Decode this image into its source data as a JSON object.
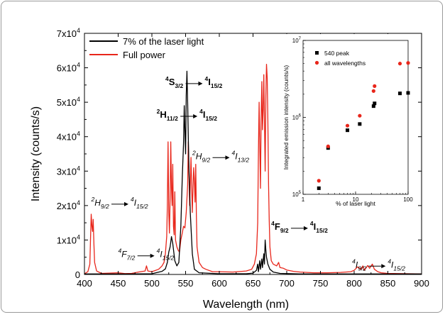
{
  "chart_data": [
    {
      "type": "line",
      "xlabel": "Wavelength (nm)",
      "ylabel": "Intensity (counts/s)",
      "xlim": [
        400,
        900
      ],
      "ylim": [
        0,
        70000
      ],
      "x_ticks": [
        "400",
        "450",
        "500",
        "550",
        "600",
        "650",
        "700",
        "750",
        "800",
        "850",
        "900"
      ],
      "y_ticks": [
        {
          "value": 0,
          "mantissa": "0",
          "exp": ""
        },
        {
          "value": 10000,
          "mantissa": "1x10",
          "exp": "4"
        },
        {
          "value": 20000,
          "mantissa": "2x10",
          "exp": "4"
        },
        {
          "value": 30000,
          "mantissa": "3x10",
          "exp": "4"
        },
        {
          "value": 40000,
          "mantissa": "4x10",
          "exp": "4"
        },
        {
          "value": 50000,
          "mantissa": "5x10",
          "exp": "4"
        },
        {
          "value": 60000,
          "mantissa": "6x10",
          "exp": "4"
        },
        {
          "value": 70000,
          "mantissa": "7x10",
          "exp": "4"
        }
      ],
      "legend_position": "top-left",
      "series": [
        {
          "name": "7% of the laser light",
          "color": "#000000",
          "points": [
            [
              400,
              150
            ],
            [
              470,
              150
            ],
            [
              500,
              200
            ],
            [
              515,
              900
            ],
            [
              520,
              1600
            ],
            [
              523,
              3500
            ],
            [
              525,
              6500
            ],
            [
              527,
              8000
            ],
            [
              529,
              11000
            ],
            [
              531,
              9000
            ],
            [
              534,
              4000
            ],
            [
              537,
              2500
            ],
            [
              540,
              3500
            ],
            [
              543,
              14000
            ],
            [
              545,
              28000
            ],
            [
              547,
              38000
            ],
            [
              548,
              49000
            ],
            [
              549,
              42000
            ],
            [
              550,
              35000
            ],
            [
              551,
              52000
            ],
            [
              552,
              59000
            ],
            [
              553,
              50000
            ],
            [
              554,
              40000
            ],
            [
              555,
              30000
            ],
            [
              557,
              18000
            ],
            [
              560,
              6000
            ],
            [
              563,
              1500
            ],
            [
              570,
              500
            ],
            [
              600,
              200
            ],
            [
              640,
              200
            ],
            [
              650,
              400
            ],
            [
              655,
              1200
            ],
            [
              657,
              3000
            ],
            [
              658,
              800
            ],
            [
              660,
              4000
            ],
            [
              661,
              1500
            ],
            [
              663,
              4500
            ],
            [
              664,
              2000
            ],
            [
              666,
              6000
            ],
            [
              667,
              3000
            ],
            [
              668,
              10000
            ],
            [
              669,
              7000
            ],
            [
              670,
              5000
            ],
            [
              672,
              3000
            ],
            [
              675,
              1500
            ],
            [
              680,
              700
            ],
            [
              690,
              300
            ],
            [
              720,
              150
            ],
            [
              900,
              150
            ]
          ]
        },
        {
          "name": "Full power",
          "color": "#e8261b",
          "points": [
            [
              400,
              200
            ],
            [
              405,
              800
            ],
            [
              408,
              3000
            ],
            [
              409,
              10000
            ],
            [
              410,
              17500
            ],
            [
              411,
              14000
            ],
            [
              412,
              12500
            ],
            [
              413,
              16000
            ],
            [
              414,
              9000
            ],
            [
              415,
              3500
            ],
            [
              418,
              1000
            ],
            [
              425,
              300
            ],
            [
              450,
              500
            ],
            [
              460,
              250
            ],
            [
              470,
              300
            ],
            [
              480,
              700
            ],
            [
              490,
              1000
            ],
            [
              492,
              2500
            ],
            [
              494,
              1000
            ],
            [
              500,
              800
            ],
            [
              510,
              1500
            ],
            [
              515,
              2500
            ],
            [
              518,
              3500
            ],
            [
              520,
              6000
            ],
            [
              522,
              11000
            ],
            [
              523,
              20000
            ],
            [
              524,
              38500
            ],
            [
              525,
              18000
            ],
            [
              526,
              12000
            ],
            [
              527,
              22000
            ],
            [
              528,
              38500
            ],
            [
              529,
              25000
            ],
            [
              530,
              20000
            ],
            [
              531,
              32000
            ],
            [
              532,
              14000
            ],
            [
              533,
              11500
            ],
            [
              534,
              24000
            ],
            [
              535,
              10000
            ],
            [
              537,
              8000
            ],
            [
              539,
              7000
            ],
            [
              541,
              6500
            ],
            [
              543,
              10000
            ],
            [
              545,
              12000
            ],
            [
              547,
              14000
            ],
            [
              549,
              13500
            ],
            [
              551,
              18000
            ],
            [
              552,
              22000
            ],
            [
              553,
              26000
            ],
            [
              554,
              38500
            ],
            [
              555,
              29000
            ],
            [
              556,
              20000
            ],
            [
              557,
              26500
            ],
            [
              558,
              34000
            ],
            [
              559,
              25000
            ],
            [
              560,
              18000
            ],
            [
              561,
              25500
            ],
            [
              562,
              31000
            ],
            [
              563,
              27000
            ],
            [
              564,
              21000
            ],
            [
              565,
              32000
            ],
            [
              566,
              17000
            ],
            [
              567,
              8000
            ],
            [
              570,
              3500
            ],
            [
              575,
              2000
            ],
            [
              580,
              1500
            ],
            [
              590,
              800
            ],
            [
              600,
              800
            ],
            [
              620,
              700
            ],
            [
              640,
              1000
            ],
            [
              648,
              1500
            ],
            [
              652,
              3000
            ],
            [
              655,
              6000
            ],
            [
              657,
              15000
            ],
            [
              658,
              35000
            ],
            [
              659,
              50000
            ],
            [
              660,
              38000
            ],
            [
              661,
              25000
            ],
            [
              662,
              45000
            ],
            [
              663,
              56000
            ],
            [
              664,
              42000
            ],
            [
              665,
              48000
            ],
            [
              666,
              58000
            ],
            [
              667,
              45000
            ],
            [
              668,
              30000
            ],
            [
              669,
              52000
            ],
            [
              670,
              61000
            ],
            [
              671,
              57000
            ],
            [
              672,
              45000
            ],
            [
              673,
              26000
            ],
            [
              674,
              16000
            ],
            [
              675,
              8000
            ],
            [
              677,
              4000
            ],
            [
              680,
              3000
            ],
            [
              685,
              2500
            ],
            [
              688,
              3500
            ],
            [
              690,
              2000
            ],
            [
              695,
              1800
            ],
            [
              700,
              1300
            ],
            [
              710,
              900
            ],
            [
              720,
              700
            ],
            [
              740,
              500
            ],
            [
              760,
              500
            ],
            [
              780,
              600
            ],
            [
              795,
              800
            ],
            [
              800,
              1200
            ],
            [
              805,
              2200
            ],
            [
              810,
              1500
            ],
            [
              813,
              2500
            ],
            [
              815,
              1200
            ],
            [
              818,
              2000
            ],
            [
              820,
              2600
            ],
            [
              823,
              1800
            ],
            [
              825,
              2400
            ],
            [
              827,
              3000
            ],
            [
              830,
              1500
            ],
            [
              835,
              800
            ],
            [
              840,
              500
            ],
            [
              850,
              300
            ],
            [
              900,
              150
            ]
          ]
        }
      ],
      "annotations": [
        {
          "main": "S",
          "sub": "3/2",
          "sup": "4",
          "arrow_to": "I",
          "to_sub": "15/2",
          "to_sup": "4",
          "style": "bold",
          "x": 520,
          "y": 55000
        },
        {
          "main": "H",
          "sub": "11/2",
          "sup": "2",
          "arrow_to": "I",
          "to_sub": "15/2",
          "to_sup": "4",
          "style": "bold",
          "x": 507,
          "y": 45500
        },
        {
          "main": "H",
          "sub": "9/2",
          "sup": "2",
          "arrow_to": "I",
          "to_sub": "13/2",
          "to_sup": "4",
          "style": "italic",
          "x": 560,
          "y": 33500
        },
        {
          "main": "H",
          "sub": "9/2",
          "sup": "2",
          "arrow_to": "I",
          "to_sub": "15/2",
          "to_sup": "4",
          "style": "italic",
          "x": 410,
          "y": 20000
        },
        {
          "main": "F",
          "sub": "7/2",
          "sup": "4",
          "arrow_to": "I",
          "to_sub": "15/2",
          "to_sup": "4",
          "style": "italic",
          "x": 450,
          "y": 5000
        },
        {
          "main": "F",
          "sub": "9/2",
          "sup": "4",
          "arrow_to": "I",
          "to_sub": "15/2",
          "to_sup": "4",
          "style": "bold",
          "x": 677,
          "y": 13000
        },
        {
          "main": "I",
          "sub": "9/2",
          "sup": "4",
          "arrow_to": "I",
          "to_sub": "15/2",
          "to_sup": "4",
          "style": "italic",
          "x": 797,
          "y": 2000
        }
      ]
    },
    {
      "type": "scatter",
      "xlabel": "% of laser light",
      "ylabel": "Integrated emission intensity (counts/s)",
      "xscale": "log",
      "yscale": "log",
      "xlim": [
        1,
        100
      ],
      "ylim": [
        100000,
        10000000
      ],
      "x_ticks": [
        {
          "value": 1,
          "label": "1"
        },
        {
          "value": 10,
          "label": "10"
        },
        {
          "value": 100,
          "label": "100"
        }
      ],
      "y_ticks": [
        {
          "value": 100000,
          "mantissa": "10",
          "exp": "5"
        },
        {
          "value": 1000000,
          "mantissa": "10",
          "exp": "6"
        },
        {
          "value": 10000000,
          "mantissa": "10",
          "exp": "7"
        }
      ],
      "legend_position": "top-left",
      "series": [
        {
          "name": "540 peak",
          "color": "#000000",
          "marker": "square",
          "points": [
            [
              2,
              120000
            ],
            [
              3,
              400000
            ],
            [
              7,
              680000
            ],
            [
              12,
              820000
            ],
            [
              22,
              1400000
            ],
            [
              23,
              1520000
            ],
            [
              70,
              2050000
            ],
            [
              100,
              2080000
            ]
          ]
        },
        {
          "name": "all wavelengths",
          "color": "#e8261b",
          "marker": "circle",
          "points": [
            [
              2,
              150000
            ],
            [
              3,
              420000
            ],
            [
              7,
              780000
            ],
            [
              12,
              1050000
            ],
            [
              22,
              2200000
            ],
            [
              23,
              2550000
            ],
            [
              70,
              5000000
            ],
            [
              100,
              5100000
            ]
          ]
        }
      ]
    }
  ]
}
